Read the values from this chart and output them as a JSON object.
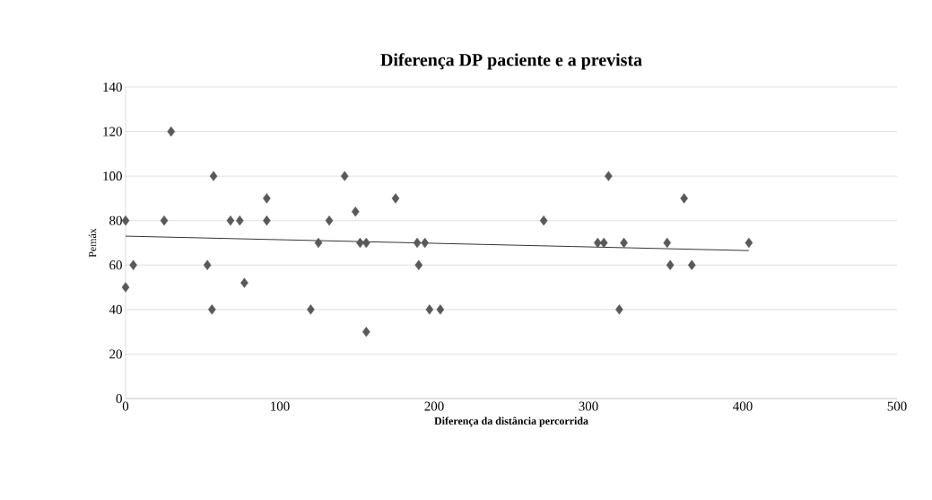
{
  "chart_data": {
    "type": "scatter",
    "title": "Diferença DP paciente e a prevista",
    "xlabel": "Diferença da distância percorrida",
    "ylabel": "Pemáx",
    "xlim": [
      0,
      500
    ],
    "xticks": [
      0,
      100,
      200,
      300,
      400,
      500
    ],
    "ylim": [
      0,
      140
    ],
    "yticks": [
      0,
      20,
      40,
      60,
      80,
      100,
      120,
      140
    ],
    "grid": "y",
    "marker": "diamond",
    "series": [
      {
        "color": "#595959",
        "x": [
          0,
          0,
          5,
          29.5,
          25,
          57,
          53,
          56,
          68,
          74,
          77,
          91.5,
          91.5,
          120,
          125,
          132,
          142,
          149,
          152,
          156,
          156,
          175,
          189,
          190,
          194,
          197,
          204,
          271,
          306,
          310,
          313,
          323,
          320,
          351,
          353,
          362,
          367,
          404
        ],
        "values": [
          80,
          50,
          60,
          120,
          80,
          100,
          60,
          40,
          80,
          80,
          52,
          90,
          80,
          40,
          70,
          80,
          100,
          84,
          70,
          70,
          30,
          90,
          70,
          60,
          70,
          40,
          40,
          80,
          70,
          70,
          100,
          70,
          40,
          70,
          60,
          90,
          60,
          70
        ]
      },
      {
        "type": "line",
        "color": "#000000",
        "marker": "none",
        "x": [
          0,
          404
        ],
        "values": [
          73,
          66.5
        ]
      }
    ]
  }
}
